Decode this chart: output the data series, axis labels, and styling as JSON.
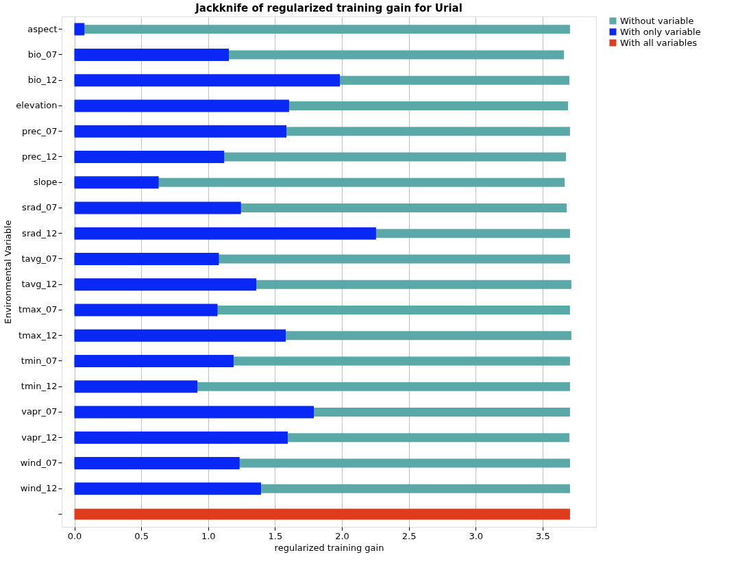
{
  "chart_data": {
    "type": "bar",
    "orientation": "horizontal",
    "title": "Jackknife of regularized training gain for Urial",
    "xlabel": "regularized training gain",
    "ylabel": "Environmental Variable",
    "categories": [
      "aspect",
      "bio_07",
      "bio_12",
      "elevation",
      "prec_07",
      "prec_12",
      "slope",
      "srad_07",
      "srad_12",
      "tavg_07",
      "tavg_12",
      "tmax_07",
      "tmax_12",
      "tmin_07",
      "tmin_12",
      "vapr_07",
      "vapr_12",
      "wind_07",
      "wind_12",
      null
    ],
    "series": [
      {
        "name": "Without variable",
        "color": "#5ba8a8",
        "values": [
          3.705,
          3.66,
          3.7,
          3.69,
          3.705,
          3.675,
          3.665,
          3.68,
          3.705,
          3.705,
          3.715,
          3.705,
          3.715,
          3.705,
          3.705,
          3.705,
          3.7,
          3.705,
          3.705,
          null
        ]
      },
      {
        "name": "With only variable",
        "color": "#0a28f5",
        "values": [
          0.075,
          1.155,
          1.985,
          1.605,
          1.585,
          1.12,
          0.63,
          1.245,
          2.255,
          1.08,
          1.36,
          1.07,
          1.58,
          1.19,
          0.92,
          1.79,
          1.595,
          1.235,
          1.395,
          null
        ]
      },
      {
        "name": "With all variables",
        "color": "#e03c1c",
        "values": [
          null,
          null,
          null,
          null,
          null,
          null,
          null,
          null,
          null,
          null,
          null,
          null,
          null,
          null,
          null,
          null,
          null,
          null,
          null,
          3.705
        ]
      }
    ],
    "xlim": [
      -0.095,
      3.9
    ],
    "xticks": [
      {
        "value": 0,
        "label": "0.0"
      },
      0.5,
      {
        "value": 1,
        "label": "1.0"
      },
      1.5,
      {
        "value": 2,
        "label": "2.0"
      },
      2.5,
      {
        "value": 3,
        "label": "3.0"
      },
      3.5
    ],
    "grid": "x",
    "legend": "top right"
  }
}
